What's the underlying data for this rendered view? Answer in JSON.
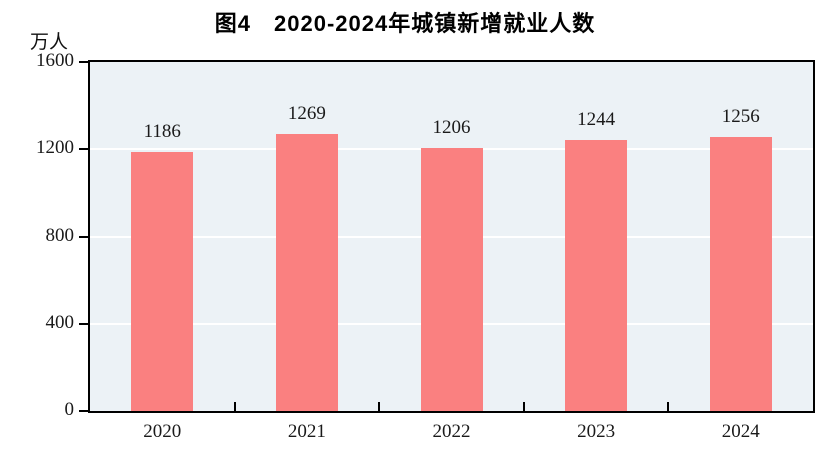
{
  "figure": {
    "title": "图4　2020-2024年城镇新增就业人数",
    "unit_label": "万人"
  },
  "colors": {
    "bar": "#FA8080",
    "plot_bg": "#ECF2F6",
    "grid": "#FFFFFF",
    "axis": "#000000",
    "text": "#1A1A1A"
  },
  "chart_data": {
    "type": "bar",
    "title": "图4　2020-2024年城镇新增就业人数",
    "categories": [
      "2020",
      "2021",
      "2022",
      "2023",
      "2024"
    ],
    "values": [
      1186,
      1269,
      1206,
      1244,
      1256
    ],
    "xlabel": "",
    "ylabel": "万人",
    "ylim": [
      0,
      1600
    ],
    "yticks": [
      0,
      400,
      800,
      1200,
      1600
    ],
    "grid": true,
    "gridline_levels": [
      400,
      800,
      1200
    ],
    "legend": false,
    "bar_color": "#FA8080",
    "plot_background": "#ECF2F6",
    "data_labels": true
  }
}
